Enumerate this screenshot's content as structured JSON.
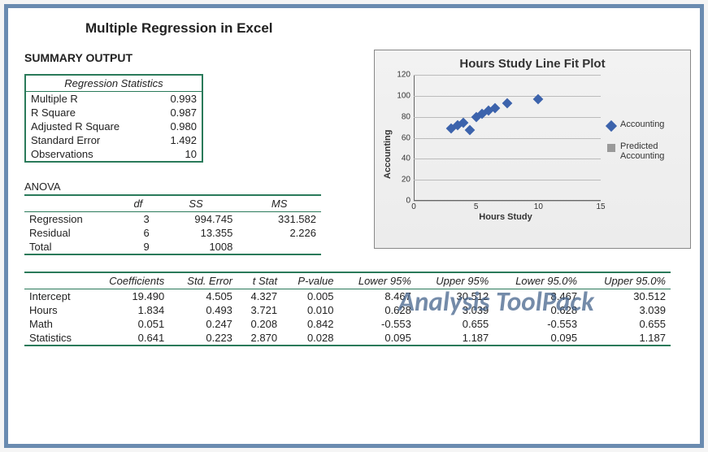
{
  "title": "Multiple Regression in Excel",
  "summary_label": "SUMMARY OUTPUT",
  "toolpack_label": "Analysis ToolPack",
  "reg_stats": {
    "header": "Regression Statistics",
    "rows": [
      {
        "label": "Multiple R",
        "value": "0.993"
      },
      {
        "label": "R Square",
        "value": "0.987"
      },
      {
        "label": "Adjusted R Square",
        "value": "0.980"
      },
      {
        "label": "Standard Error",
        "value": "1.492"
      },
      {
        "label": "Observations",
        "value": "10"
      }
    ]
  },
  "anova": {
    "label": "ANOVA",
    "headers": [
      "",
      "df",
      "SS",
      "MS"
    ],
    "rows": [
      {
        "label": "Regression",
        "df": "3",
        "ss": "994.745",
        "ms": "331.582"
      },
      {
        "label": "Residual",
        "df": "6",
        "ss": "13.355",
        "ms": "2.226"
      },
      {
        "label": "Total",
        "df": "9",
        "ss": "1008",
        "ms": ""
      }
    ]
  },
  "coef": {
    "headers": [
      "",
      "Coefficients",
      "Std. Error",
      "t Stat",
      "P-value",
      "Lower 95%",
      "Upper 95%",
      "Lower 95.0%",
      "Upper 95.0%"
    ],
    "rows": [
      {
        "label": "Intercept",
        "v": [
          "19.490",
          "4.505",
          "4.327",
          "0.005",
          "8.467",
          "30.512",
          "8.467",
          "30.512"
        ]
      },
      {
        "label": "Hours",
        "v": [
          "1.834",
          "0.493",
          "3.721",
          "0.010",
          "0.628",
          "3.039",
          "0.628",
          "3.039"
        ]
      },
      {
        "label": "Math",
        "v": [
          "0.051",
          "0.247",
          "0.208",
          "0.842",
          "-0.553",
          "0.655",
          "-0.553",
          "0.655"
        ]
      },
      {
        "label": "Statistics",
        "v": [
          "0.641",
          "0.223",
          "2.870",
          "0.028",
          "0.095",
          "1.187",
          "0.095",
          "1.187"
        ]
      }
    ]
  },
  "chart": {
    "title": "Hours Study Line Fit  Plot",
    "ylabel": "Accounting",
    "xlabel": "Hours Study",
    "xlim": [
      0,
      15
    ],
    "ylim": [
      0,
      120
    ],
    "xticks": [
      0,
      5,
      10,
      15
    ],
    "yticks": [
      0,
      20,
      40,
      60,
      80,
      100,
      120
    ],
    "grid_color": "#bbbbbb",
    "series": [
      {
        "name": "Accounting",
        "color": "#3c63ac",
        "marker": "diamond",
        "points": [
          [
            3,
            69
          ],
          [
            3.5,
            72
          ],
          [
            4,
            74
          ],
          [
            4.5,
            67
          ],
          [
            5,
            80
          ],
          [
            5.5,
            83
          ],
          [
            6,
            86
          ],
          [
            6.5,
            88
          ],
          [
            7.5,
            93
          ],
          [
            10,
            97
          ]
        ]
      },
      {
        "name": "Predicted Accounting",
        "color": "#9a9a9a",
        "marker": "square",
        "points": []
      }
    ],
    "legend": [
      {
        "label": "Accounting",
        "color": "#3c63ac",
        "shape": "diamond"
      },
      {
        "label": "Predicted Accounting",
        "color": "#9a9a9a",
        "shape": "square"
      }
    ]
  }
}
